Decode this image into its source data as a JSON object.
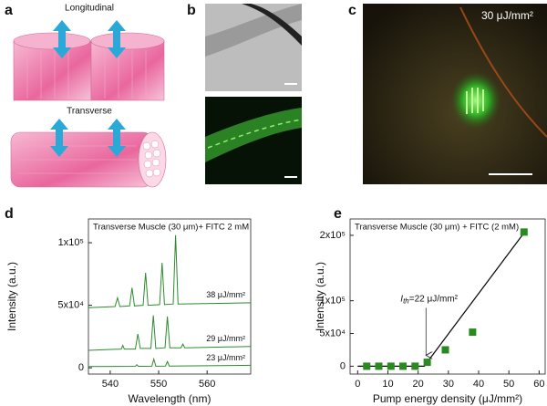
{
  "panels": [
    {
      "label": "a",
      "captions": [
        "Longitudinal",
        "Transverse"
      ]
    },
    {
      "label": "b"
    },
    {
      "label": "c",
      "caption": "30 μJ/mm²"
    }
  ],
  "chart_data": [
    {
      "type": "line",
      "panel_label": "d",
      "title": "Transverse Muscle (30 μm)+ FITC 2 mM",
      "x_label": "Wavelength (nm)",
      "y_label": "Intensity (a.u.)",
      "xlim": [
        535.5,
        569
      ],
      "ylim": [
        -5000,
        119000
      ],
      "xticks": [
        540,
        550,
        560
      ],
      "yticks": [
        0,
        {
          "value": 50000,
          "label": "5x10⁴"
        },
        {
          "value": 100000,
          "label": "1x10⁵"
        }
      ],
      "series": [
        {
          "name": "38 μJ/mm²",
          "color": "#2e8b2e",
          "x": [
            535.5,
            541,
            541.5,
            542,
            544,
            544.5,
            545,
            546.8,
            547.3,
            547.8,
            550.2,
            550.7,
            551.2,
            553,
            553.5,
            554,
            569
          ],
          "values": [
            48000,
            49000,
            56000,
            49000,
            49500,
            64000,
            49500,
            50000,
            76000,
            50000,
            50500,
            84000,
            50500,
            51000,
            106000,
            51000,
            52000
          ]
        },
        {
          "name": "29 μJ/mm²",
          "color": "#2e8b2e",
          "x": [
            535.5,
            542.3,
            542.6,
            542.9,
            545.2,
            545.7,
            546.2,
            548.4,
            548.9,
            549.4,
            551.3,
            551.8,
            552.3,
            554.6,
            555,
            555.4,
            569
          ],
          "values": [
            14000,
            15000,
            18000,
            15000,
            15000,
            27000,
            15500,
            15500,
            42000,
            15500,
            16000,
            41000,
            16000,
            16000,
            19000,
            16000,
            17000
          ]
        },
        {
          "name": "23 μJ/mm²",
          "color": "#2e8b2e",
          "x": [
            535.5,
            545.2,
            545.5,
            545.8,
            548.6,
            549,
            549.4,
            551.4,
            551.8,
            552.2,
            569
          ],
          "values": [
            1000,
            1200,
            2500,
            1200,
            1300,
            7000,
            1300,
            1400,
            5000,
            1400,
            2000
          ]
        }
      ]
    },
    {
      "type": "scatter",
      "panel_label": "e",
      "title": "Transverse Muscle (30 μm) + FITC (2 mM)",
      "x_label": "Pump energy density (μJ/mm²)",
      "y_label": "Intensity (a.u.)",
      "xlim": [
        -2.5,
        62
      ],
      "ylim": [
        -12000,
        225000
      ],
      "xticks": [
        0,
        10,
        20,
        30,
        40,
        50,
        60
      ],
      "yticks": [
        0,
        {
          "value": 50000,
          "label": "5x10⁴"
        },
        {
          "value": 100000,
          "label": "1x10⁵"
        },
        {
          "value": 200000,
          "label": "2x10⁵"
        }
      ],
      "color": "#2a8a1f",
      "x": [
        3,
        7,
        11,
        15,
        19,
        23,
        29,
        38,
        55
      ],
      "values": [
        0,
        0,
        0,
        0,
        0,
        6000,
        25000,
        52000,
        205000
      ],
      "fit": {
        "color": "#000000",
        "x": [
          0,
          22,
          56
        ],
        "values": [
          0,
          0,
          210000
        ]
      },
      "annotation": {
        "symbol": "I",
        "subscript": "th",
        "text": "=22 μJ/mm²"
      }
    }
  ]
}
